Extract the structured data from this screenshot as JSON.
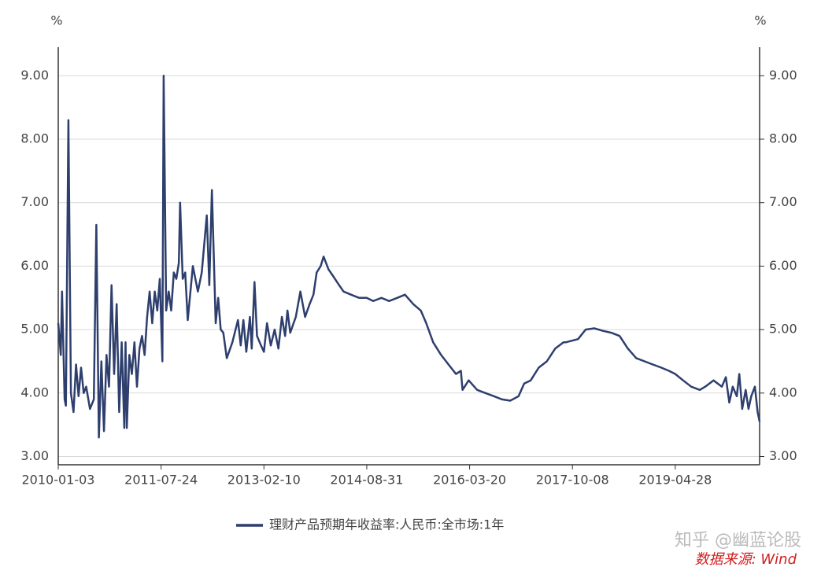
{
  "chart_data": {
    "type": "line",
    "y_unit": "%",
    "y2_unit": "%",
    "x": [
      "2010-01-03",
      "2010-01-17",
      "2010-01-24",
      "2010-02-07",
      "2010-02-14",
      "2010-02-28",
      "2010-03-14",
      "2010-03-28",
      "2010-04-11",
      "2010-04-25",
      "2010-05-09",
      "2010-05-23",
      "2010-06-06",
      "2010-06-27",
      "2010-07-18",
      "2010-08-01",
      "2010-08-15",
      "2010-08-29",
      "2010-09-12",
      "2010-09-26",
      "2010-10-10",
      "2010-10-24",
      "2010-11-07",
      "2010-11-21",
      "2010-12-05",
      "2010-12-19",
      "2011-01-02",
      "2011-01-09",
      "2011-01-16",
      "2011-01-30",
      "2011-02-13",
      "2011-02-27",
      "2011-03-13",
      "2011-03-27",
      "2011-04-10",
      "2011-04-24",
      "2011-05-08",
      "2011-05-22",
      "2011-06-05",
      "2011-06-19",
      "2011-07-03",
      "2011-07-17",
      "2011-07-31",
      "2011-08-07",
      "2011-08-21",
      "2011-09-04",
      "2011-09-18",
      "2011-10-02",
      "2011-10-16",
      "2011-10-30",
      "2011-11-06",
      "2011-11-20",
      "2011-12-04",
      "2011-12-18",
      "2012-01-15",
      "2012-02-12",
      "2012-03-04",
      "2012-04-01",
      "2012-04-15",
      "2012-04-29",
      "2012-05-20",
      "2012-06-03",
      "2012-06-17",
      "2012-07-01",
      "2012-07-20",
      "2012-08-20",
      "2012-09-20",
      "2012-10-05",
      "2012-10-20",
      "2012-11-05",
      "2012-11-25",
      "2012-12-05",
      "2012-12-20",
      "2013-01-03",
      "2013-01-25",
      "2013-02-10",
      "2013-02-27",
      "2013-03-20",
      "2013-04-10",
      "2013-05-01",
      "2013-05-20",
      "2013-06-07",
      "2013-06-20",
      "2013-07-05",
      "2013-08-05",
      "2013-08-30",
      "2013-09-25",
      "2013-10-20",
      "2013-11-10",
      "2013-11-28",
      "2013-12-20",
      "2014-01-05",
      "2014-02-01",
      "2014-02-25",
      "2014-03-20",
      "2014-04-25",
      "2014-06-05",
      "2014-07-20",
      "2014-08-31",
      "2014-10-05",
      "2014-11-20",
      "2015-01-01",
      "2015-02-15",
      "2015-03-30",
      "2015-05-15",
      "2015-06-25",
      "2015-07-25",
      "2015-09-01",
      "2015-10-15",
      "2015-11-25",
      "2016-01-05",
      "2016-02-01",
      "2016-02-10",
      "2016-03-15",
      "2016-05-01",
      "2016-06-15",
      "2016-08-01",
      "2016-09-15",
      "2016-10-30",
      "2016-12-15",
      "2017-01-15",
      "2017-02-20",
      "2017-04-05",
      "2017-05-20",
      "2017-07-05",
      "2017-08-20",
      "2017-09-01",
      "2017-11-08",
      "2017-12-20",
      "2018-02-05",
      "2018-03-25",
      "2018-05-10",
      "2018-06-25",
      "2018-08-10",
      "2018-09-25",
      "2018-11-10",
      "2018-12-25",
      "2019-02-10",
      "2019-03-25",
      "2019-04-28",
      "2019-06-10",
      "2019-07-25",
      "2019-09-10",
      "2019-10-10",
      "2019-11-25",
      "2020-01-10",
      "2020-02-01",
      "2020-02-20",
      "2020-03-10",
      "2020-04-01",
      "2020-04-15",
      "2020-05-01",
      "2020-05-20",
      "2020-06-05",
      "2020-06-20",
      "2020-07-10",
      "2020-07-25",
      "2020-08-05"
    ],
    "series": [
      {
        "name": "理财产品预期年收益率:人民币:全市场:1年",
        "color": "#2e3f6e",
        "values": [
          5.1,
          4.6,
          5.6,
          3.9,
          3.8,
          8.3,
          4.0,
          3.7,
          4.45,
          3.95,
          4.4,
          4.0,
          4.1,
          3.75,
          3.9,
          6.65,
          3.3,
          4.5,
          3.4,
          4.6,
          4.1,
          5.7,
          4.3,
          5.4,
          3.7,
          4.8,
          3.45,
          4.8,
          3.45,
          4.6,
          4.3,
          4.8,
          4.1,
          4.7,
          4.9,
          4.6,
          5.2,
          5.6,
          5.1,
          5.6,
          5.3,
          5.8,
          4.5,
          9.0,
          5.3,
          5.6,
          5.3,
          5.9,
          5.8,
          6.05,
          7.0,
          5.8,
          5.9,
          5.15,
          6.0,
          5.6,
          5.9,
          6.8,
          5.7,
          7.2,
          5.1,
          5.5,
          5.0,
          4.95,
          4.55,
          4.8,
          5.15,
          4.75,
          5.15,
          4.65,
          5.2,
          4.7,
          5.75,
          4.9,
          4.75,
          4.65,
          5.1,
          4.75,
          5.0,
          4.7,
          5.2,
          4.9,
          5.3,
          4.95,
          5.2,
          5.6,
          5.2,
          5.4,
          5.55,
          5.9,
          6.0,
          6.15,
          5.95,
          5.85,
          5.75,
          5.6,
          5.55,
          5.5,
          5.5,
          5.45,
          5.5,
          5.45,
          5.5,
          5.55,
          5.4,
          5.3,
          5.1,
          4.8,
          4.6,
          4.45,
          4.3,
          4.35,
          4.05,
          4.2,
          4.05,
          4.0,
          3.95,
          3.9,
          3.88,
          3.95,
          4.15,
          4.2,
          4.4,
          4.5,
          4.7,
          4.8,
          4.8,
          4.85,
          5.0,
          5.02,
          4.98,
          4.95,
          4.9,
          4.7,
          4.55,
          4.5,
          4.45,
          4.4,
          4.35,
          4.3,
          4.2,
          4.1,
          4.05,
          4.1,
          4.2,
          4.1,
          4.25,
          3.85,
          4.1,
          3.95,
          4.3,
          3.75,
          4.05,
          3.75,
          3.95,
          4.1,
          3.7,
          3.55
        ]
      }
    ],
    "xlim": [
      "2010-01-03",
      "2020-08-05"
    ],
    "xticks": [
      "2010-01-03",
      "2011-07-24",
      "2013-02-10",
      "2014-08-31",
      "2016-03-20",
      "2017-10-08",
      "2019-04-28"
    ],
    "ylim": [
      2.87,
      9.45
    ],
    "yticks": [
      {
        "value": 3,
        "label": "3.00"
      },
      {
        "value": 4,
        "label": "4.00"
      },
      {
        "value": 5,
        "label": "5.00"
      },
      {
        "value": 6,
        "label": "6.00"
      },
      {
        "value": 7,
        "label": "7.00"
      },
      {
        "value": 8,
        "label": "8.00"
      },
      {
        "value": 9,
        "label": "9.00"
      }
    ],
    "y2lim": [
      2.87,
      9.45
    ],
    "y2ticks": [
      {
        "value": 3,
        "label": "3.00"
      },
      {
        "value": 4,
        "label": "4.00"
      },
      {
        "value": 5,
        "label": "5.00"
      },
      {
        "value": 6,
        "label": "6.00"
      },
      {
        "value": 7,
        "label": "7.00"
      },
      {
        "value": 8,
        "label": "8.00"
      },
      {
        "value": 9,
        "label": "9.00"
      }
    ],
    "grid": true,
    "legend": "bottom",
    "watermark": "知乎 @幽蓝论股",
    "source": "数据来源: Wind"
  }
}
